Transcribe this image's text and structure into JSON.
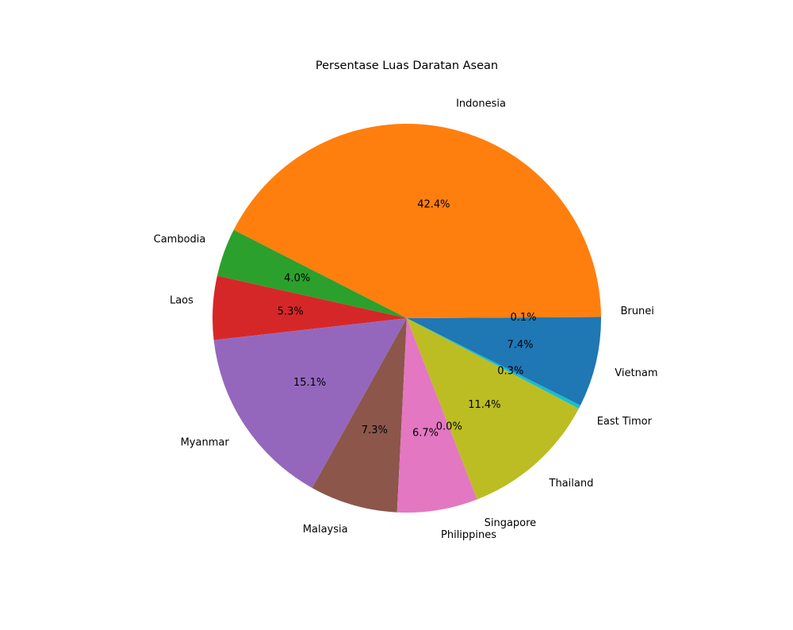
{
  "chart_data": {
    "type": "pie",
    "title": "Persentase Luas Daratan Asean",
    "start_angle_deg": 0,
    "direction": "counterclockwise",
    "slices": [
      {
        "label": "Brunei",
        "pct_label": "0.1%",
        "value": 0.1,
        "color": "#1f77b4"
      },
      {
        "label": "Indonesia",
        "pct_label": "42.4%",
        "value": 42.4,
        "color": "#ff7f0e"
      },
      {
        "label": "Cambodia",
        "pct_label": "4.0%",
        "value": 4.0,
        "color": "#2ca02c"
      },
      {
        "label": "Laos",
        "pct_label": "5.3%",
        "value": 5.3,
        "color": "#d62728"
      },
      {
        "label": "Myanmar",
        "pct_label": "15.1%",
        "value": 15.1,
        "color": "#9467bd"
      },
      {
        "label": "Malaysia",
        "pct_label": "7.3%",
        "value": 7.3,
        "color": "#8c564b"
      },
      {
        "label": "Philippines",
        "pct_label": "6.7%",
        "value": 6.7,
        "color": "#e377c2"
      },
      {
        "label": "Singapore",
        "pct_label": "0.0%",
        "value": 0.0,
        "color": "#7f7f7f"
      },
      {
        "label": "Thailand",
        "pct_label": "11.4%",
        "value": 11.4,
        "color": "#bcbd22"
      },
      {
        "label": "East Timor",
        "pct_label": "0.3%",
        "value": 0.3,
        "color": "#17becf"
      },
      {
        "label": "Vietnam",
        "pct_label": "7.4%",
        "value": 7.4,
        "color": "#1f77b4"
      }
    ]
  }
}
